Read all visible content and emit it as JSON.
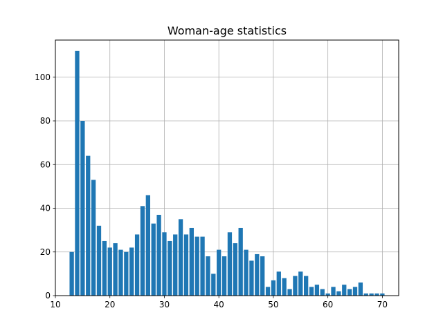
{
  "chart_data": {
    "type": "bar",
    "title": "Woman-age statistics",
    "xlabel": "",
    "ylabel": "",
    "xlim": [
      10,
      73
    ],
    "ylim": [
      0,
      117
    ],
    "x_ticks": [
      10,
      20,
      30,
      40,
      50,
      60,
      70
    ],
    "y_ticks": [
      0,
      20,
      40,
      60,
      80,
      100
    ],
    "grid": true,
    "bar_color": "#1f77b4",
    "bar_width": 0.8,
    "bars": [
      {
        "x": 13,
        "y": 20
      },
      {
        "x": 14,
        "y": 112
      },
      {
        "x": 15,
        "y": 80
      },
      {
        "x": 16,
        "y": 64
      },
      {
        "x": 17,
        "y": 53
      },
      {
        "x": 18,
        "y": 32
      },
      {
        "x": 19,
        "y": 25
      },
      {
        "x": 20,
        "y": 22
      },
      {
        "x": 21,
        "y": 24
      },
      {
        "x": 22,
        "y": 21
      },
      {
        "x": 23,
        "y": 20
      },
      {
        "x": 24,
        "y": 22
      },
      {
        "x": 25,
        "y": 28
      },
      {
        "x": 26,
        "y": 41
      },
      {
        "x": 27,
        "y": 46
      },
      {
        "x": 28,
        "y": 33
      },
      {
        "x": 29,
        "y": 37
      },
      {
        "x": 30,
        "y": 29
      },
      {
        "x": 31,
        "y": 25
      },
      {
        "x": 32,
        "y": 28
      },
      {
        "x": 33,
        "y": 35
      },
      {
        "x": 34,
        "y": 28
      },
      {
        "x": 35,
        "y": 31
      },
      {
        "x": 36,
        "y": 27
      },
      {
        "x": 37,
        "y": 27
      },
      {
        "x": 38,
        "y": 18
      },
      {
        "x": 39,
        "y": 10
      },
      {
        "x": 40,
        "y": 21
      },
      {
        "x": 41,
        "y": 18
      },
      {
        "x": 42,
        "y": 29
      },
      {
        "x": 43,
        "y": 24
      },
      {
        "x": 44,
        "y": 31
      },
      {
        "x": 45,
        "y": 21
      },
      {
        "x": 46,
        "y": 16
      },
      {
        "x": 47,
        "y": 19
      },
      {
        "x": 48,
        "y": 18
      },
      {
        "x": 49,
        "y": 4
      },
      {
        "x": 50,
        "y": 7
      },
      {
        "x": 51,
        "y": 11
      },
      {
        "x": 52,
        "y": 8
      },
      {
        "x": 53,
        "y": 3
      },
      {
        "x": 54,
        "y": 9
      },
      {
        "x": 55,
        "y": 11
      },
      {
        "x": 56,
        "y": 9
      },
      {
        "x": 57,
        "y": 4
      },
      {
        "x": 58,
        "y": 5
      },
      {
        "x": 59,
        "y": 3
      },
      {
        "x": 60,
        "y": 1
      },
      {
        "x": 61,
        "y": 4
      },
      {
        "x": 62,
        "y": 2
      },
      {
        "x": 63,
        "y": 5
      },
      {
        "x": 64,
        "y": 3
      },
      {
        "x": 65,
        "y": 4
      },
      {
        "x": 66,
        "y": 6
      },
      {
        "x": 67,
        "y": 1
      },
      {
        "x": 68,
        "y": 1
      },
      {
        "x": 69,
        "y": 1
      },
      {
        "x": 70,
        "y": 1
      }
    ]
  }
}
